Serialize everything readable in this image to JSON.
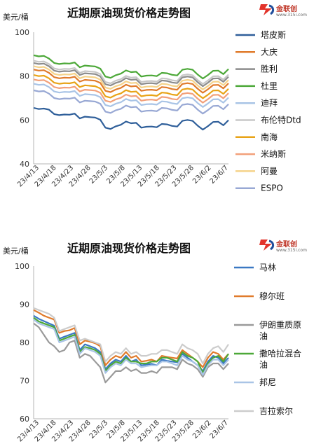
{
  "chart_data": [
    {
      "type": "line",
      "title": "近期原油现货价格走势图",
      "ylabel": "美元/桶",
      "ylim": [
        40,
        100
      ],
      "yticks": [
        40,
        60,
        80,
        100
      ],
      "xticks": [
        "23/4/13",
        "23/4/18",
        "23/4/23",
        "23/4/28",
        "23/5/3",
        "23/5/8",
        "23/5/13",
        "23/5/18",
        "23/5/23",
        "23/5/28",
        "23/6/2",
        "23/6/7"
      ],
      "grid": false,
      "legend_position": "right",
      "logo": {
        "brand": "金联创",
        "site": "www.315i.com"
      },
      "series": [
        {
          "name": "塔皮斯",
          "color": "#2f5f9a",
          "values": [
            65.5,
            65.0,
            65.2,
            64.7,
            62.7,
            62.2,
            62.5,
            62.4,
            62.9,
            60.7,
            61.5,
            61.3,
            61.1,
            60.1,
            56.5,
            55.9,
            57.1,
            57.8,
            59.3,
            58.5,
            58.7,
            56.5,
            56.9,
            57.0,
            56.7,
            58.2,
            58.0,
            57.3,
            57.0,
            59.6,
            60.0,
            59.6,
            57.4,
            55.6,
            57.2,
            59.1,
            59.2,
            57.6,
            59.9
          ]
        },
        {
          "name": "大庆",
          "color": "#e07b2c",
          "values": [
            83.0,
            82.5,
            82.7,
            81.5,
            79.5,
            79.0,
            79.3,
            79.2,
            79.7,
            77.5,
            78.3,
            78.1,
            77.9,
            76.9,
            73.3,
            72.7,
            73.9,
            74.6,
            76.1,
            75.3,
            75.5,
            73.3,
            73.7,
            73.8,
            73.5,
            75.0,
            74.8,
            74.1,
            73.8,
            76.4,
            76.8,
            76.4,
            74.2,
            72.4,
            74.0,
            75.9,
            76.0,
            74.4,
            76.7
          ]
        },
        {
          "name": "胜利",
          "color": "#8c8c8c",
          "values": [
            86.0,
            85.5,
            85.7,
            84.5,
            82.5,
            82.0,
            82.3,
            82.2,
            82.7,
            80.5,
            81.3,
            81.1,
            80.9,
            79.9,
            76.3,
            75.7,
            76.9,
            77.6,
            79.1,
            78.3,
            78.5,
            76.3,
            76.7,
            76.8,
            76.5,
            78.0,
            77.8,
            77.1,
            76.8,
            79.4,
            79.8,
            79.4,
            77.2,
            75.4,
            77.0,
            78.9,
            79.0,
            77.4,
            79.7
          ]
        },
        {
          "name": "杜里",
          "color": "#4ca838",
          "values": [
            89.5,
            89.0,
            89.2,
            88.0,
            86.0,
            85.5,
            85.8,
            85.7,
            86.2,
            84.0,
            84.8,
            84.6,
            84.4,
            83.4,
            79.8,
            79.2,
            80.4,
            81.1,
            82.6,
            81.8,
            82.0,
            79.8,
            80.2,
            80.3,
            80.0,
            81.5,
            81.3,
            80.6,
            80.3,
            82.9,
            83.3,
            82.9,
            80.7,
            78.9,
            80.5,
            82.4,
            82.5,
            80.9,
            83.2
          ]
        },
        {
          "name": "迪拜",
          "color": "#a9c4e6",
          "values": [
            76.5,
            76.0,
            76.2,
            75.0,
            73.0,
            72.5,
            72.8,
            72.7,
            73.2,
            71.0,
            71.8,
            71.6,
            71.4,
            70.4,
            66.8,
            66.2,
            67.4,
            68.1,
            69.6,
            68.8,
            69.0,
            66.8,
            67.2,
            67.3,
            67.0,
            68.5,
            68.3,
            67.6,
            67.3,
            69.9,
            70.3,
            69.9,
            67.7,
            65.9,
            67.5,
            69.4,
            69.5,
            67.9,
            70.2
          ]
        },
        {
          "name": "布伦特Dtd",
          "color": "#c8c8c8",
          "values": [
            87.0,
            86.5,
            86.7,
            85.5,
            83.5,
            83.0,
            83.3,
            83.2,
            83.7,
            81.5,
            82.3,
            82.1,
            81.9,
            80.9,
            77.3,
            76.7,
            77.9,
            78.6,
            80.1,
            79.3,
            79.5,
            77.3,
            77.7,
            77.8,
            77.5,
            79.0,
            78.8,
            78.1,
            77.8,
            80.4,
            80.8,
            80.4,
            78.2,
            76.4,
            78.0,
            79.9,
            80.0,
            78.4,
            80.7
          ]
        },
        {
          "name": "南海",
          "color": "#e8a317",
          "values": [
            80.5,
            80.0,
            80.2,
            79.0,
            77.0,
            76.5,
            76.8,
            76.7,
            77.2,
            75.0,
            75.8,
            75.6,
            75.4,
            74.4,
            70.8,
            70.2,
            71.4,
            72.1,
            73.6,
            72.8,
            73.0,
            70.8,
            71.2,
            71.3,
            71.0,
            72.5,
            72.3,
            71.6,
            71.3,
            73.9,
            74.3,
            73.9,
            71.7,
            69.9,
            71.5,
            73.4,
            73.5,
            71.9,
            74.2
          ]
        },
        {
          "name": "米纳斯",
          "color": "#f2a07a",
          "values": [
            78.5,
            78.0,
            78.2,
            77.0,
            75.0,
            74.5,
            74.8,
            74.7,
            75.2,
            73.0,
            73.8,
            73.6,
            73.4,
            72.4,
            68.8,
            68.2,
            69.4,
            70.1,
            71.6,
            70.8,
            71.0,
            68.8,
            69.2,
            69.3,
            69.0,
            70.5,
            70.3,
            69.6,
            69.3,
            71.9,
            72.3,
            71.9,
            69.7,
            67.9,
            69.5,
            71.4,
            71.5,
            69.9,
            72.2
          ]
        },
        {
          "name": "阿曼",
          "color": "#f5d38a",
          "values": [
            84.5,
            84.0,
            84.2,
            83.0,
            81.0,
            80.5,
            80.8,
            80.7,
            81.2,
            79.0,
            79.8,
            79.6,
            79.4,
            78.4,
            74.8,
            74.2,
            75.4,
            76.1,
            77.6,
            76.8,
            77.0,
            74.8,
            75.2,
            75.3,
            75.0,
            76.5,
            76.3,
            75.6,
            75.3,
            77.9,
            78.3,
            77.9,
            75.7,
            73.9,
            75.5,
            77.4,
            77.5,
            75.9,
            78.2
          ]
        },
        {
          "name": "ESPO",
          "color": "#98a8d4",
          "values": [
            73.5,
            73.0,
            73.2,
            72.0,
            70.0,
            69.5,
            69.8,
            69.7,
            70.2,
            68.0,
            68.8,
            68.6,
            68.4,
            67.4,
            63.8,
            63.2,
            64.4,
            65.1,
            66.6,
            65.8,
            66.0,
            63.8,
            64.2,
            64.3,
            64.0,
            65.5,
            65.3,
            64.6,
            64.3,
            66.9,
            67.3,
            66.9,
            64.7,
            62.9,
            64.5,
            66.4,
            66.5,
            64.9,
            67.2
          ]
        }
      ]
    },
    {
      "type": "line",
      "title": "近期原油现货价格走势图",
      "ylabel": "美元/桶",
      "ylim": [
        60,
        100
      ],
      "yticks": [
        60,
        70,
        80,
        90,
        100
      ],
      "xticks": [
        "23/4/13",
        "23/4/18",
        "23/4/23",
        "23/4/28",
        "23/5/3",
        "23/5/8",
        "23/5/13",
        "23/5/18",
        "23/5/23",
        "23/5/28",
        "23/6/2",
        "23/6/7"
      ],
      "grid": false,
      "legend_position": "right",
      "logo": {
        "brand": "金联创",
        "site": "www.315i.com"
      },
      "series": [
        {
          "name": "马林",
          "color": "#3a78c3",
          "values": [
            87.0,
            86.2,
            85.6,
            85.0,
            84.4,
            81.0,
            81.5,
            82.0,
            82.5,
            78.0,
            79.5,
            79.0,
            78.5,
            77.5,
            73.0,
            74.5,
            75.5,
            75.0,
            76.5,
            75.0,
            75.5,
            74.0,
            74.2,
            74.4,
            74.0,
            75.5,
            75.2,
            75.0,
            74.8,
            77.0,
            76.0,
            75.0,
            74.0,
            72.5,
            75.0,
            76.5,
            76.0,
            74.5,
            76.0
          ]
        },
        {
          "name": "穆尔班",
          "color": "#e07b2c",
          "values": [
            88.5,
            87.8,
            87.0,
            86.5,
            86.0,
            82.5,
            83.0,
            83.2,
            83.8,
            79.5,
            80.5,
            80.2,
            79.8,
            79.0,
            74.0,
            75.5,
            76.5,
            76.0,
            77.5,
            76.0,
            76.5,
            75.0,
            75.2,
            75.5,
            75.0,
            76.5,
            76.2,
            76.0,
            75.8,
            78.0,
            77.0,
            76.0,
            75.0,
            73.5,
            76.0,
            77.5,
            77.0,
            75.5,
            77.0
          ]
        },
        {
          "name": "伊朗重质原油",
          "color": "#9a9a9a",
          "values": [
            85.0,
            84.0,
            82.0,
            80.0,
            79.0,
            77.5,
            78.0,
            80.0,
            80.5,
            76.0,
            77.0,
            76.5,
            75.0,
            73.5,
            69.5,
            71.0,
            72.5,
            72.5,
            73.5,
            72.5,
            73.0,
            72.0,
            72.0,
            72.5,
            72.0,
            73.5,
            73.5,
            73.5,
            73.0,
            75.5,
            74.5,
            74.0,
            73.0,
            71.0,
            73.5,
            74.5,
            74.5,
            73.0,
            74.5
          ]
        },
        {
          "name": "撒哈拉混合油",
          "color": "#4ca838",
          "values": [
            86.5,
            85.5,
            85.0,
            84.5,
            84.0,
            80.5,
            81.0,
            81.5,
            82.0,
            77.5,
            78.8,
            78.5,
            78.0,
            77.0,
            72.5,
            74.0,
            75.0,
            74.5,
            76.0,
            75.0,
            75.0,
            74.5,
            74.5,
            75.0,
            75.0,
            76.0,
            76.0,
            75.5,
            75.0,
            77.5,
            76.5,
            76.0,
            75.0,
            72.0,
            74.5,
            76.0,
            76.5,
            75.0,
            77.0
          ]
        },
        {
          "name": "邦尼",
          "color": "#a9c4e6",
          "values": [
            86.0,
            85.0,
            84.5,
            84.0,
            83.5,
            80.0,
            80.5,
            81.0,
            81.5,
            77.0,
            78.5,
            78.0,
            77.5,
            76.5,
            72.0,
            73.5,
            74.5,
            74.0,
            75.5,
            74.5,
            74.5,
            73.5,
            73.8,
            74.0,
            74.0,
            75.0,
            75.0,
            74.5,
            74.0,
            76.5,
            75.5,
            75.0,
            74.0,
            71.5,
            74.0,
            75.5,
            75.5,
            74.0,
            75.5
          ]
        },
        {
          "name": "吉拉索尔",
          "color": "#cccccc",
          "values": [
            89.0,
            88.5,
            88.0,
            87.5,
            86.5,
            83.0,
            83.5,
            84.0,
            84.5,
            80.5,
            81.0,
            80.5,
            80.0,
            79.5,
            75.0,
            76.5,
            77.5,
            77.0,
            78.5,
            77.0,
            77.5,
            76.5,
            76.5,
            77.0,
            77.0,
            78.0,
            78.0,
            77.5,
            77.0,
            79.5,
            78.5,
            78.0,
            77.0,
            74.5,
            77.0,
            78.5,
            79.0,
            77.5,
            79.5
          ]
        }
      ]
    }
  ]
}
